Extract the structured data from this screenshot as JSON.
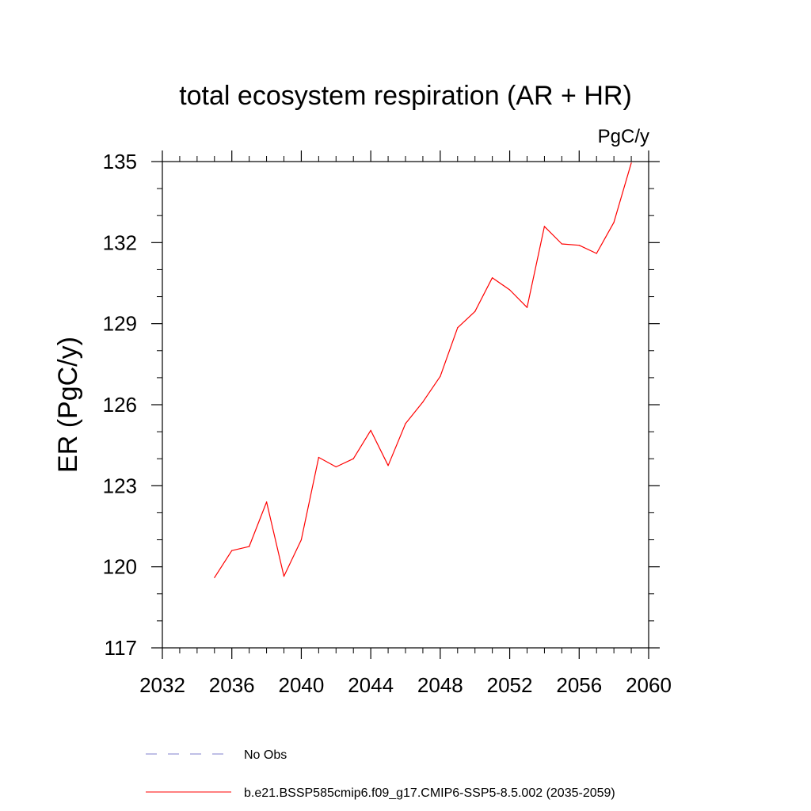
{
  "chart_data": {
    "type": "line",
    "title": "total ecosystem respiration (AR + HR)",
    "units_label": "PgC/y",
    "ylabel": "ER  (PgC/y)",
    "xlabel": "",
    "xlim": [
      2032,
      2060
    ],
    "ylim": [
      117,
      135
    ],
    "xticks": [
      2032,
      2036,
      2040,
      2044,
      2048,
      2052,
      2056,
      2060
    ],
    "yticks": [
      117,
      120,
      123,
      126,
      129,
      132,
      135
    ],
    "x_minor_step": 1,
    "y_minor_step": 1,
    "grid": false,
    "series": [
      {
        "name": "b.e21.BSSP585cmip6.f09_g17.CMIP6-SSP5-8.5.002 (2035-2059)",
        "color": "#ff0000",
        "x": [
          2035,
          2036,
          2037,
          2038,
          2039,
          2040,
          2041,
          2042,
          2043,
          2044,
          2045,
          2046,
          2047,
          2048,
          2049,
          2050,
          2051,
          2052,
          2053,
          2054,
          2055,
          2056,
          2057,
          2058,
          2059
        ],
        "values": [
          119.6,
          120.6,
          120.75,
          122.4,
          119.65,
          121.0,
          124.05,
          123.7,
          124.0,
          125.05,
          123.75,
          125.3,
          126.1,
          127.05,
          128.85,
          129.45,
          130.7,
          130.25,
          129.6,
          132.6,
          131.95,
          131.9,
          131.6,
          132.75,
          134.95
        ]
      }
    ],
    "legend": [
      {
        "label": "No Obs",
        "style": "dashed",
        "color": "#8080cc"
      },
      {
        "label": "b.e21.BSSP585cmip6.f09_g17.CMIP6-SSP5-8.5.002 (2035-2059)",
        "style": "solid",
        "color": "#ff0000"
      }
    ]
  }
}
